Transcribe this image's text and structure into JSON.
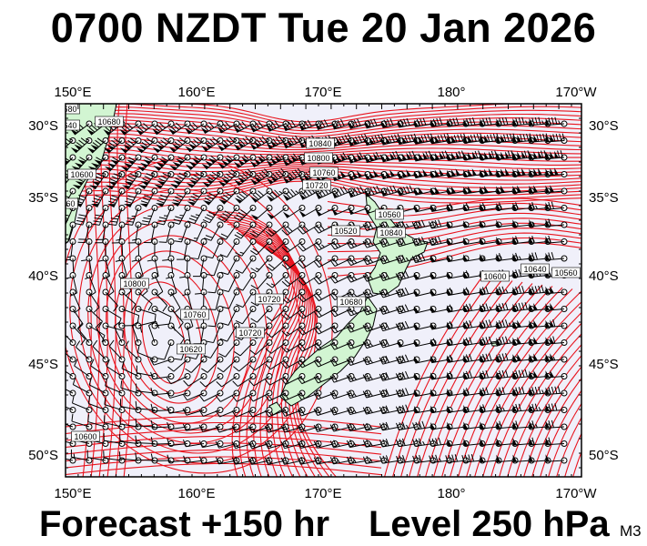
{
  "title": "0700 NZDT Tue 20 Jan 2026",
  "forecast_label": "Forecast +150 hr",
  "level_label": "Level 250 hPa",
  "model_code": "M3",
  "axes": {
    "lon_labels": [
      "150°E",
      "160°E",
      "170°E",
      "180°",
      "170°W"
    ],
    "lat_labels": [
      "30°S",
      "35°S",
      "40°S",
      "45°S",
      "50°S"
    ]
  },
  "colors": {
    "background": "#f0f0fa",
    "contour": "#e8141e",
    "land": "#d2f5d2",
    "coastline": "#000000",
    "barb": "#000000"
  },
  "contour_labels": [
    "10840",
    "10800",
    "10760",
    "10720",
    "10680",
    "10640",
    "10600",
    "10560",
    "10520",
    "10840",
    "10800",
    "10760",
    "10720",
    "10680",
    "10600",
    "10640",
    "10560",
    "10600",
    "10720",
    "10620",
    "10560",
    "10680"
  ],
  "jet_stream_feature": "high wind band across northern Tasman and east of New Zealand",
  "cutoff_low_center": "west of South Island, Tasman Sea"
}
